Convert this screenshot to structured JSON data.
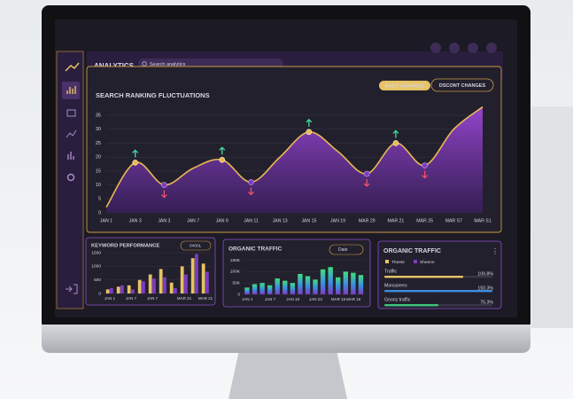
{
  "header": {
    "title": "ANALYTICS",
    "search_placeholder": "Search analytics"
  },
  "ranking_chart": {
    "type": "area",
    "title": "SEARCH RANKING FLUCTUATIONS",
    "buttons": [
      "BAILY CHANGES",
      "DSCONT CHANGES"
    ],
    "categories": [
      "JAN 1",
      "JAN 3",
      "JAN 3",
      "JAN 7",
      "JAN 9",
      "JAN 11",
      "JAN 13",
      "JAN 15",
      "JAN 19",
      "MAR 29",
      "MAR 21",
      "MAR 25",
      "MAR S7",
      "MAR S1"
    ],
    "values": [
      2,
      18,
      10,
      16,
      19,
      11,
      20,
      29,
      22,
      14,
      25,
      17,
      30,
      38
    ],
    "ylim": [
      0,
      37
    ],
    "yticks": [
      0,
      5,
      10,
      15,
      20,
      25,
      30,
      35
    ],
    "grid": true,
    "color": "#8a3cc4",
    "line_color": "#e9b955"
  },
  "keyword_performance": {
    "type": "bar",
    "title": "KEYWORD PERFORMANCE",
    "dropdown": "0400L",
    "categories": [
      "JAN 1",
      null,
      "JAN 7",
      null,
      "JAN 7",
      null,
      null,
      "MAR 21",
      null,
      "MAR 21"
    ],
    "series": [
      {
        "color": "#e7c366",
        "values": [
          150,
          250,
          300,
          500,
          700,
          900,
          400,
          1000,
          1300,
          1100
        ]
      },
      {
        "color": "#7b3cc2",
        "values": [
          200,
          300,
          150,
          450,
          550,
          600,
          200,
          700,
          1450,
          800
        ]
      }
    ],
    "ylim": [
      0,
      1600
    ],
    "yticks": [
      0,
      500,
      1000,
      1500
    ]
  },
  "organic_traffic_chart": {
    "type": "bar",
    "title": "ORGANIC TRAFFIC",
    "dropdown": "Date",
    "categories": [
      "JAN 1",
      null,
      null,
      "JAN 7",
      null,
      null,
      "JAN 19",
      null,
      null,
      "JAN 23",
      null,
      null,
      "MAR 15",
      null,
      "MAR 15",
      null
    ],
    "values": [
      30000,
      45000,
      50000,
      40000,
      70000,
      60000,
      50000,
      90000,
      80000,
      65000,
      110000,
      120000,
      75000,
      100000,
      95000,
      85000
    ],
    "ylim": [
      0,
      160000
    ],
    "yticks": [
      {
        "value": 0,
        "label": "0"
      },
      {
        "value": 50000,
        "label": "50K"
      },
      {
        "value": 100000,
        "label": "100K"
      },
      {
        "value": 150000,
        "label": "150K"
      }
    ]
  },
  "organic_traffic_panel": {
    "title": "ORGANIC TRAFFIC",
    "legend": [
      {
        "name": "Theete",
        "color": "#e7c366"
      },
      {
        "name": "Sheenn",
        "color": "#7b3cc2"
      }
    ],
    "rows": [
      {
        "label": "Traffic",
        "value": 109.8,
        "value_label": "109.8%",
        "color": "#e7c366"
      },
      {
        "label": "Monsarees",
        "value": 150.3,
        "value_label": "150.3%",
        "color": "#3b8ee0"
      },
      {
        "label": "Goonz traffic",
        "value": 75.3,
        "value_label": "75.3%",
        "color": "#3cc47a"
      }
    ]
  }
}
